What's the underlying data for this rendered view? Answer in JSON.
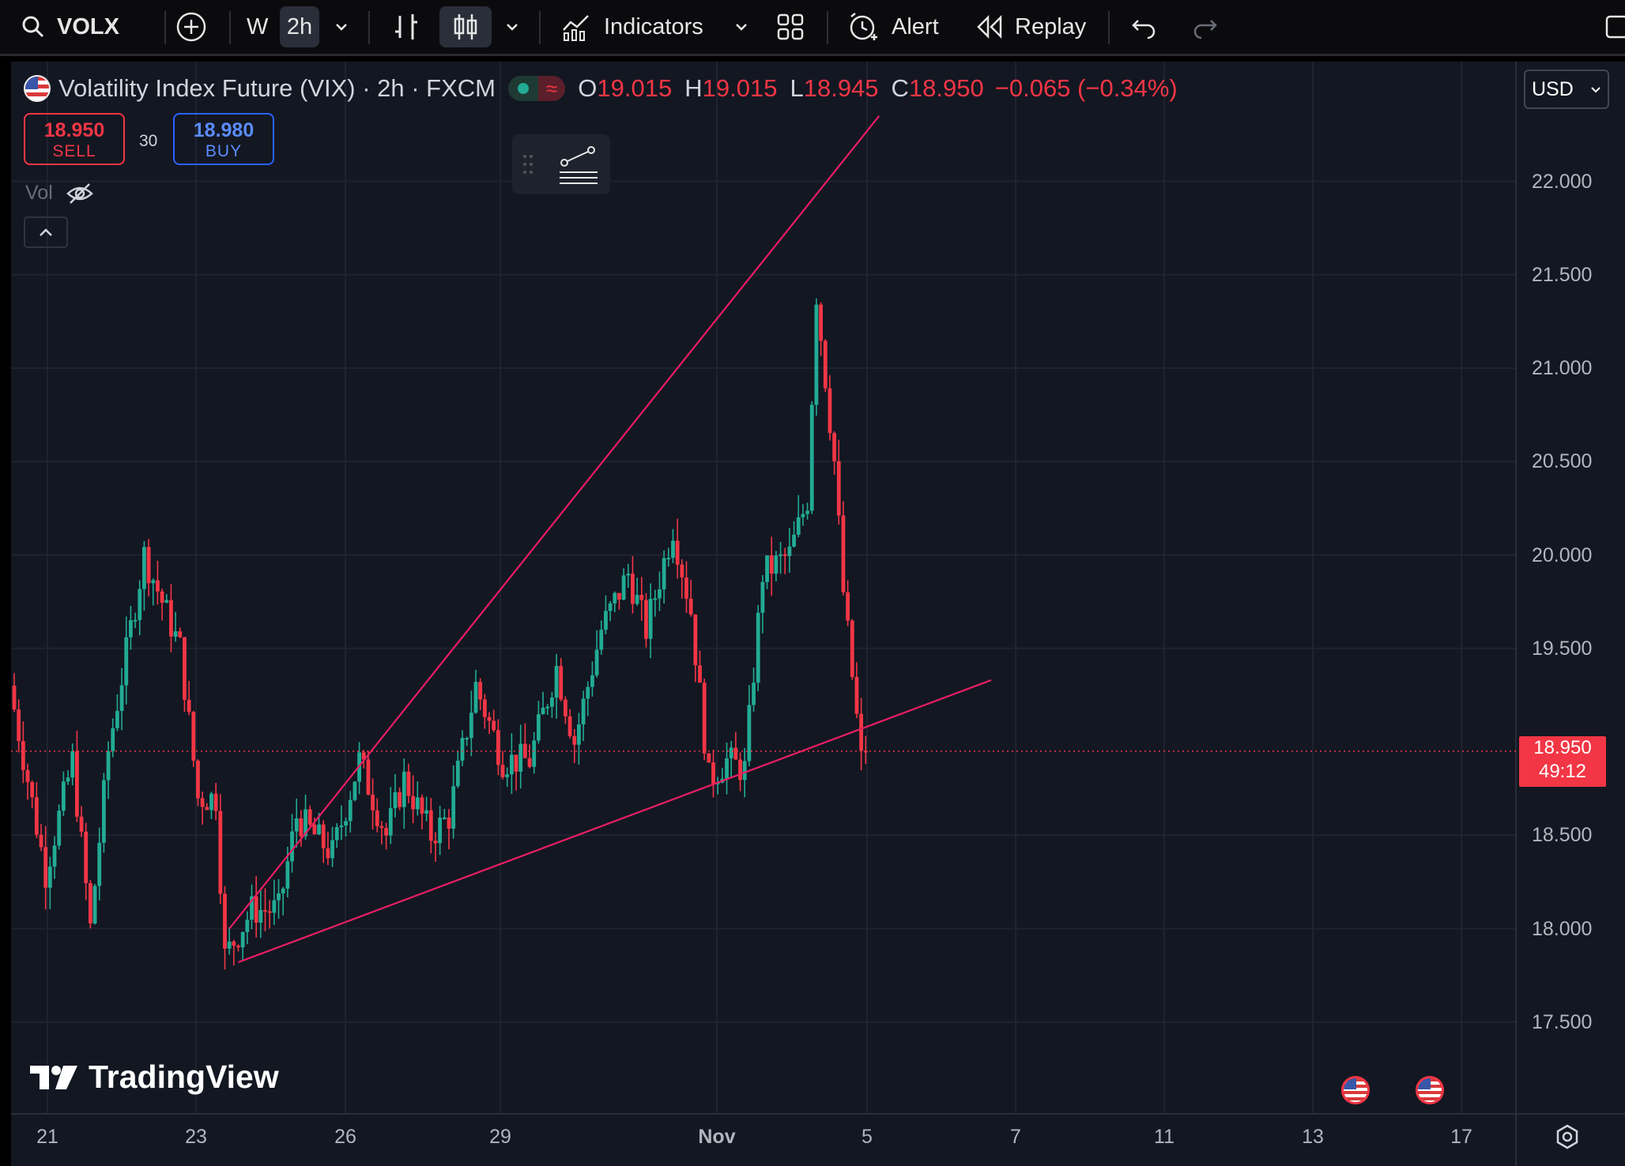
{
  "toolbar": {
    "symbol": "VOLX",
    "interval_w": "W",
    "interval_2h": "2h",
    "indicators_label": "Indicators",
    "alert_label": "Alert",
    "replay_label": "Replay"
  },
  "legend": {
    "title": "Volatility Index Future (VIX) · 2h · FXCM",
    "status_icon": "≈",
    "o_key": "O",
    "o_val": "19.015",
    "h_key": "H",
    "h_val": "19.015",
    "l_key": "L",
    "l_val": "18.945",
    "c_key": "C",
    "c_val": "18.950",
    "change": "−0.065 (−0.34%)"
  },
  "trade": {
    "sell_price": "18.950",
    "sell_label": "SELL",
    "spread": "30",
    "buy_price": "18.980",
    "buy_label": "BUY"
  },
  "vol_label": "Vol",
  "currency": "USD",
  "last_price": "18.950",
  "countdown": "49:12",
  "brand": "TradingView",
  "colors": {
    "up": "#22ab94",
    "down": "#f23645",
    "trendline": "#e91e63",
    "background": "#131722"
  },
  "chart_data": {
    "type": "candlestick",
    "ylim": [
      17.2,
      22.8
    ],
    "yticks": [
      "22.000",
      "21.500",
      "21.000",
      "20.500",
      "20.000",
      "19.500",
      "18.500",
      "18.000",
      "17.500"
    ],
    "xticks": [
      "21",
      "23",
      "26",
      "29",
      "Nov",
      "5",
      "7",
      "11",
      "13",
      "17"
    ],
    "anchors": [
      [
        0,
        19.3
      ],
      [
        8,
        18.3
      ],
      [
        14,
        18.9
      ],
      [
        18,
        18.0
      ],
      [
        22,
        18.95
      ],
      [
        30,
        20.0
      ],
      [
        38,
        19.5
      ],
      [
        42,
        18.7
      ],
      [
        46,
        18.7
      ],
      [
        48,
        17.85
      ],
      [
        54,
        18.1
      ],
      [
        60,
        18.1
      ],
      [
        64,
        18.6
      ],
      [
        72,
        18.4
      ],
      [
        78,
        18.9
      ],
      [
        84,
        18.5
      ],
      [
        88,
        18.8
      ],
      [
        94,
        18.5
      ],
      [
        98,
        18.6
      ],
      [
        104,
        19.3
      ],
      [
        110,
        18.9
      ],
      [
        116,
        18.9
      ],
      [
        122,
        19.4
      ],
      [
        126,
        19.0
      ],
      [
        132,
        19.6
      ],
      [
        138,
        19.9
      ],
      [
        142,
        19.6
      ],
      [
        148,
        20.15
      ],
      [
        152,
        19.7
      ],
      [
        156,
        18.8
      ],
      [
        160,
        18.9
      ],
      [
        164,
        18.85
      ],
      [
        168,
        19.9
      ],
      [
        174,
        20.0
      ],
      [
        178,
        20.3
      ],
      [
        180,
        21.4
      ],
      [
        184,
        20.5
      ],
      [
        186,
        19.8
      ],
      [
        190,
        18.9
      ]
    ],
    "trendlines": [
      {
        "from": {
          "i": 48,
          "p": 18.0
        },
        "to": {
          "i": 193,
          "p": 22.35
        }
      },
      {
        "from": {
          "i": 50,
          "p": 17.82
        },
        "to": {
          "i": 218,
          "p": 19.33
        }
      }
    ]
  }
}
